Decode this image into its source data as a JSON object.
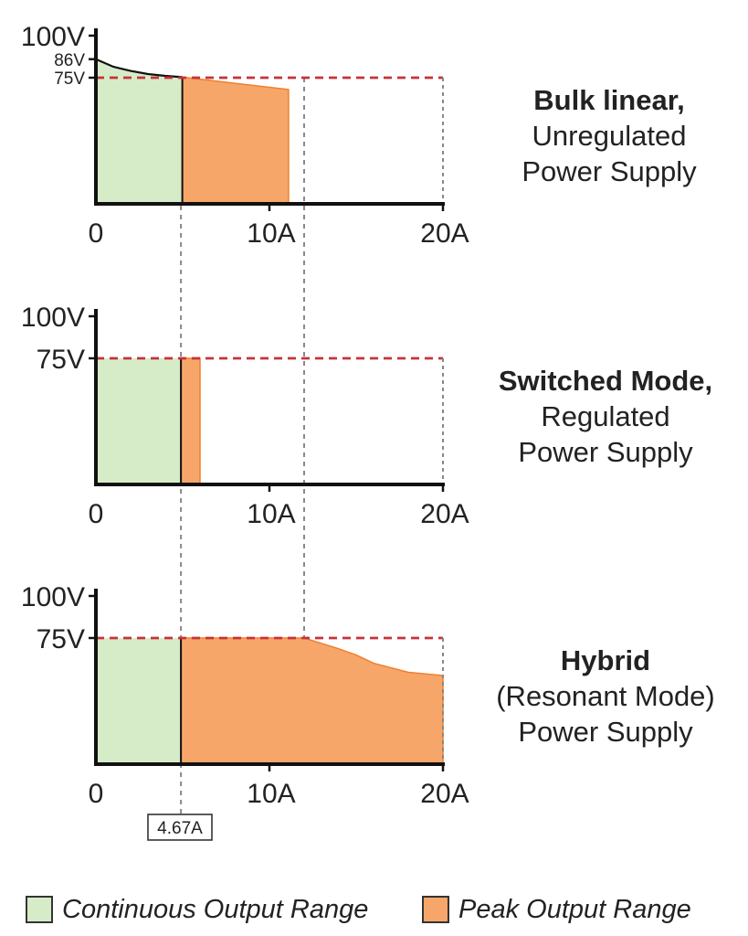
{
  "colors": {
    "continuous": "#d6ecc9",
    "peak": "#f7a66a",
    "peak_stroke": "#f07f2e",
    "ref_line": "#c8323a",
    "guide_line": "#888888",
    "axis": "#111111"
  },
  "chart_data": [
    {
      "type": "area",
      "title": "",
      "x_range": [
        0,
        20
      ],
      "y_range": [
        0,
        100
      ],
      "x_ticks": [
        "0",
        "10A",
        "20A"
      ],
      "y_ticks": [
        "100V",
        "86V",
        "75V"
      ],
      "reference_voltage": 75,
      "continuous_region": {
        "x": [
          0,
          1,
          2,
          3,
          4,
          4.98
        ],
        "y": [
          86,
          81.5,
          79,
          77.2,
          76.1,
          75.3
        ]
      },
      "peak_region": {
        "x": [
          4.98,
          11.1
        ],
        "y": [
          75.3,
          68
        ]
      },
      "label": {
        "bold": "Bulk linear,",
        "lines": [
          "Unregulated",
          "Power Supply"
        ]
      }
    },
    {
      "type": "area",
      "title": "",
      "x_range": [
        0,
        20
      ],
      "y_range": [
        0,
        100
      ],
      "x_ticks": [
        "0",
        "10A",
        "20A"
      ],
      "y_ticks": [
        "100V",
        "75V"
      ],
      "reference_voltage": 75,
      "continuous_region": {
        "x": [
          0,
          4.9
        ],
        "y": [
          75,
          75
        ]
      },
      "peak_region": {
        "x": [
          4.9,
          6.0
        ],
        "y": [
          75,
          75
        ]
      },
      "label": {
        "bold": "Switched Mode,",
        "lines": [
          "Regulated",
          "Power Supply"
        ]
      }
    },
    {
      "type": "area",
      "title": "",
      "x_range": [
        0,
        20
      ],
      "y_range": [
        0,
        100
      ],
      "x_ticks": [
        "0",
        "10A",
        "20A"
      ],
      "y_ticks": [
        "100V",
        "75V"
      ],
      "reference_voltage": 75,
      "continuous_region": {
        "x": [
          0,
          4.9
        ],
        "y": [
          75,
          75
        ]
      },
      "peak_region": {
        "x": [
          4.9,
          12.0,
          14.0,
          15.0,
          16.0,
          18.0,
          20.0
        ],
        "y": [
          75,
          75,
          68.6,
          64.9,
          60,
          54.6,
          52.7
        ]
      },
      "label": {
        "bold": "Hybrid",
        "lines": [
          "(Resonant Mode)",
          "Power Supply"
        ]
      }
    }
  ],
  "annotations": {
    "current_marker": "4.67A",
    "guide_currents": [
      4.9,
      12.0
    ]
  },
  "legend": {
    "continuous_label": "Continuous Output Range",
    "peak_label": "Peak Output Range"
  }
}
